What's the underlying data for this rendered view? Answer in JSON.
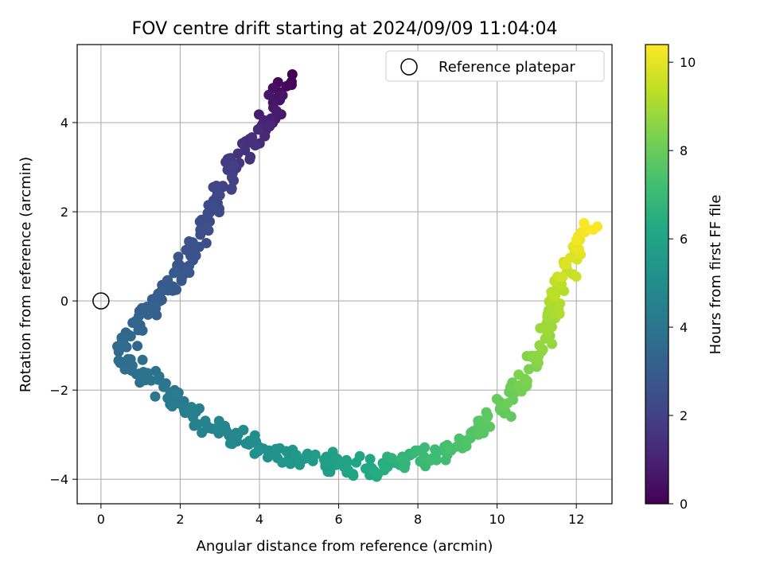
{
  "chart_data": {
    "type": "scatter",
    "title": "FOV centre drift starting at 2024/09/09 11:04:04",
    "xlabel": "Angular distance from reference (arcmin)",
    "ylabel": "Rotation from reference (arcmin)",
    "xlim": [
      -0.6,
      12.9
    ],
    "ylim": [
      -4.55,
      5.75
    ],
    "xticks": [
      0,
      2,
      4,
      6,
      8,
      10,
      12
    ],
    "yticks": [
      -4,
      -2,
      0,
      2,
      4
    ],
    "grid": true,
    "legend": {
      "location": "top-right",
      "entries": [
        "Reference platepar"
      ]
    },
    "reference_point": {
      "x": 0,
      "y": 0
    },
    "colorbar": {
      "label": "Hours from first FF file",
      "range": [
        0,
        10.4
      ],
      "ticks": [
        0,
        2,
        4,
        6,
        8,
        10
      ],
      "colormap": "viridis",
      "colors": [
        "#440154",
        "#482475",
        "#414487",
        "#355f8d",
        "#2a788e",
        "#21918c",
        "#22a884",
        "#44bf70",
        "#7ad151",
        "#bddf26",
        "#fde725"
      ]
    },
    "series": [
      {
        "path": [
          [
            4.7,
            5.0,
            0.0
          ],
          [
            4.5,
            4.6,
            0.45
          ],
          [
            4.3,
            4.0,
            0.9
          ],
          [
            3.9,
            3.7,
            1.25
          ],
          [
            3.45,
            3.25,
            1.6
          ],
          [
            3.3,
            2.8,
            1.9
          ],
          [
            3.0,
            2.4,
            2.15
          ],
          [
            2.7,
            2.0,
            2.35
          ],
          [
            2.4,
            1.4,
            2.55
          ],
          [
            2.2,
            0.8,
            2.75
          ],
          [
            1.6,
            0.2,
            3.0
          ],
          [
            1.2,
            -0.2,
            3.2
          ],
          [
            0.8,
            -0.6,
            3.4
          ],
          [
            0.55,
            -1.1,
            3.6
          ],
          [
            0.9,
            -1.6,
            3.8
          ],
          [
            1.5,
            -1.9,
            4.0
          ],
          [
            2.0,
            -2.3,
            4.25
          ],
          [
            2.5,
            -2.7,
            4.5
          ],
          [
            3.3,
            -3.0,
            4.8
          ],
          [
            4.0,
            -3.3,
            5.1
          ],
          [
            5.0,
            -3.55,
            5.5
          ],
          [
            6.0,
            -3.65,
            5.9
          ],
          [
            6.9,
            -3.8,
            6.3
          ],
          [
            7.5,
            -3.6,
            6.7
          ],
          [
            8.4,
            -3.5,
            7.1
          ],
          [
            9.1,
            -3.2,
            7.45
          ],
          [
            9.9,
            -2.7,
            7.75
          ],
          [
            10.4,
            -2.1,
            8.05
          ],
          [
            10.8,
            -1.6,
            8.35
          ],
          [
            11.1,
            -1.0,
            8.65
          ],
          [
            11.4,
            -0.3,
            9.0
          ],
          [
            11.6,
            0.4,
            9.4
          ],
          [
            11.8,
            0.9,
            9.8
          ],
          [
            12.3,
            1.7,
            10.4
          ]
        ],
        "count": 460,
        "jitter": {
          "x": 0.2,
          "y": 0.18
        }
      }
    ]
  }
}
